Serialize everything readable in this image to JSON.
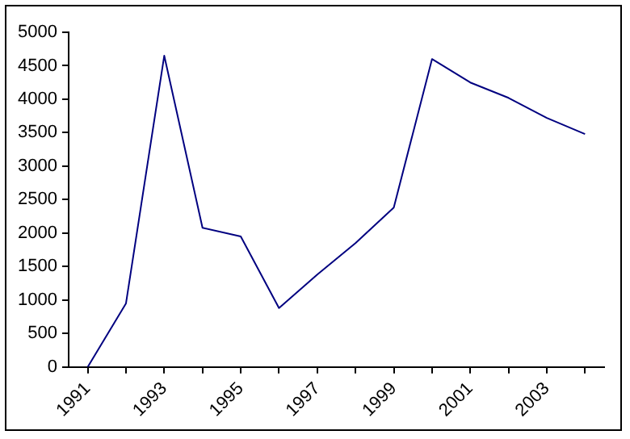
{
  "chart_data": {
    "type": "line",
    "categories": [
      "1991",
      null,
      "1993",
      null,
      "1995",
      null,
      "1997",
      null,
      "1999",
      null,
      "2001",
      null,
      "2003",
      null
    ],
    "series": [
      {
        "color": "#000080",
        "values": [
          0,
          950,
          4650,
          2080,
          1950,
          880,
          1380,
          1850,
          2380,
          4600,
          4250,
          4020,
          3720,
          3480
        ]
      }
    ],
    "ylim": [
      0,
      5000
    ],
    "yticks": [
      0,
      500,
      1000,
      1500,
      2000,
      2500,
      3000,
      3500,
      4000,
      4500,
      5000
    ],
    "grid": false,
    "legend": false,
    "marker": "none",
    "line_style": "solid"
  }
}
